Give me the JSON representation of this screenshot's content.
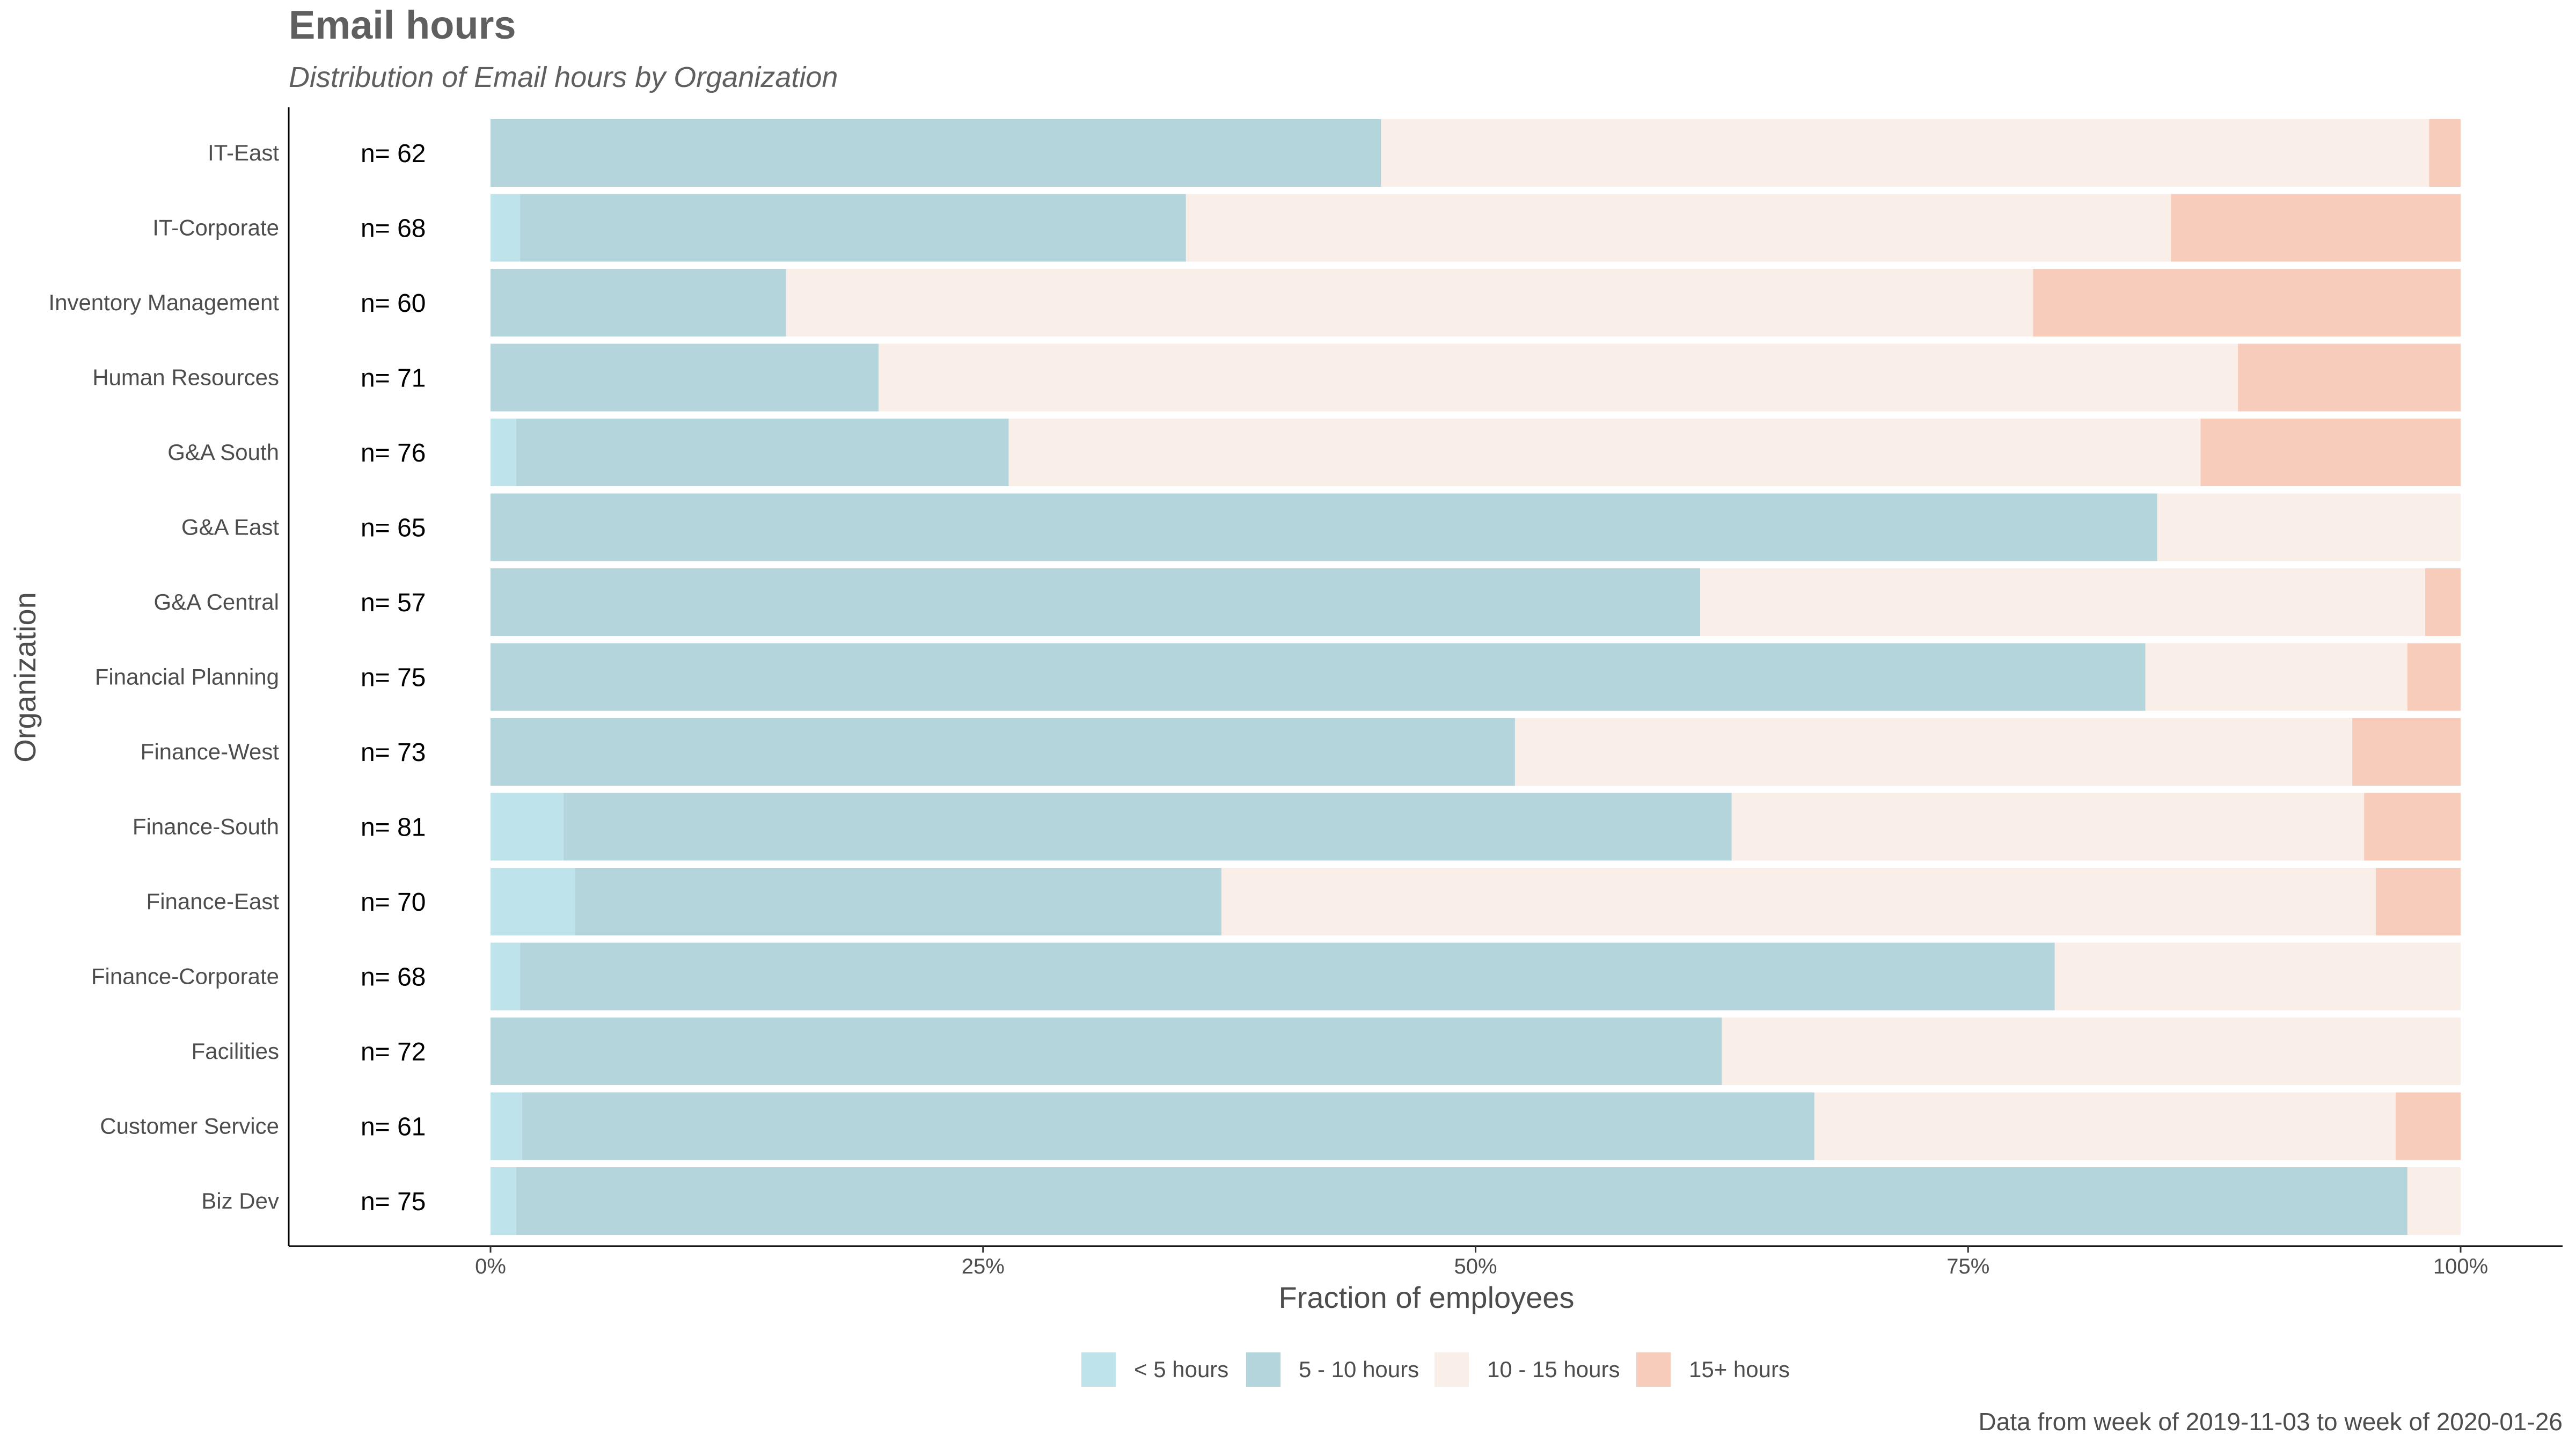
{
  "chart_data": {
    "type": "bar",
    "orientation": "horizontal",
    "stacked": "percent",
    "title": "Email hours",
    "subtitle": "Distribution of Email hours by Organization",
    "xlabel": "Fraction of employees",
    "ylabel": "Organization",
    "xlim": [
      0,
      1
    ],
    "x_ticks": [
      0,
      0.25,
      0.5,
      0.75,
      1
    ],
    "x_tick_labels": [
      "0%",
      "25%",
      "50%",
      "75%",
      "100%"
    ],
    "grid": false,
    "legend_position": "bottom",
    "caption": "Data from week of 2019-11-03 to week of 2020-01-26",
    "categories": [
      "IT-East",
      "IT-Corporate",
      "Inventory Management",
      "Human Resources",
      "G&A South",
      "G&A East",
      "G&A Central",
      "Financial Planning",
      "Finance-West",
      "Finance-South",
      "Finance-East",
      "Finance-Corporate",
      "Facilities",
      "Customer Service",
      "Biz Dev"
    ],
    "n_labels": [
      "n= 62",
      "n= 68",
      "n= 60",
      "n= 71",
      "n= 76",
      "n= 65",
      "n= 57",
      "n= 75",
      "n= 73",
      "n= 81",
      "n= 70",
      "n= 68",
      "n= 72",
      "n= 61",
      "n= 75"
    ],
    "series": [
      {
        "name": "< 5 hours",
        "color": "#bfe3eb",
        "values": [
          0.0,
          0.015,
          0.0,
          0.0,
          0.013,
          0.0,
          0.0,
          0.0,
          0.0,
          0.037,
          0.043,
          0.015,
          0.0,
          0.016,
          0.013
        ]
      },
      {
        "name": "5 - 10 hours",
        "color": "#b5d5dd",
        "values": [
          0.452,
          0.338,
          0.15,
          0.197,
          0.25,
          0.846,
          0.614,
          0.84,
          0.52,
          0.593,
          0.328,
          0.779,
          0.625,
          0.656,
          0.96
        ]
      },
      {
        "name": "10 - 15 hours",
        "color": "#faeee9",
        "values": [
          0.532,
          0.5,
          0.633,
          0.69,
          0.605,
          0.154,
          0.368,
          0.133,
          0.425,
          0.321,
          0.586,
          0.206,
          0.375,
          0.295,
          0.027
        ]
      },
      {
        "name": "15+ hours",
        "color": "#f7ccbb",
        "values": [
          0.016,
          0.147,
          0.217,
          0.113,
          0.132,
          0.0,
          0.018,
          0.027,
          0.055,
          0.049,
          0.043,
          0.0,
          0.0,
          0.033,
          0.0
        ]
      }
    ]
  }
}
